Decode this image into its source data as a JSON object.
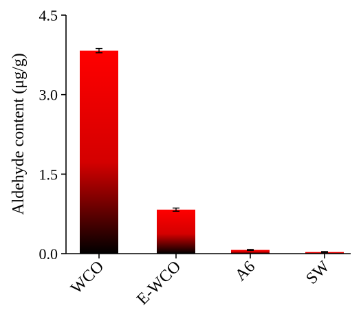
{
  "chart_data": {
    "type": "bar",
    "categories": [
      "WCO",
      "E-WCO",
      "A6",
      "SW"
    ],
    "values": [
      3.83,
      0.83,
      0.07,
      0.03
    ],
    "errors": [
      0.04,
      0.03,
      0.01,
      0.01
    ],
    "ylabel": "Aldehyde content (μg/g)",
    "xlabel": "",
    "ylim": [
      0,
      4.5
    ],
    "yticks": [
      0.0,
      1.5,
      3.0,
      4.5
    ],
    "ytick_labels": [
      "0.0",
      "1.5",
      "3.0",
      "4.5"
    ],
    "grid": false,
    "bar_gradient": {
      "top": "#ff0000",
      "bottom": "#000000"
    }
  }
}
